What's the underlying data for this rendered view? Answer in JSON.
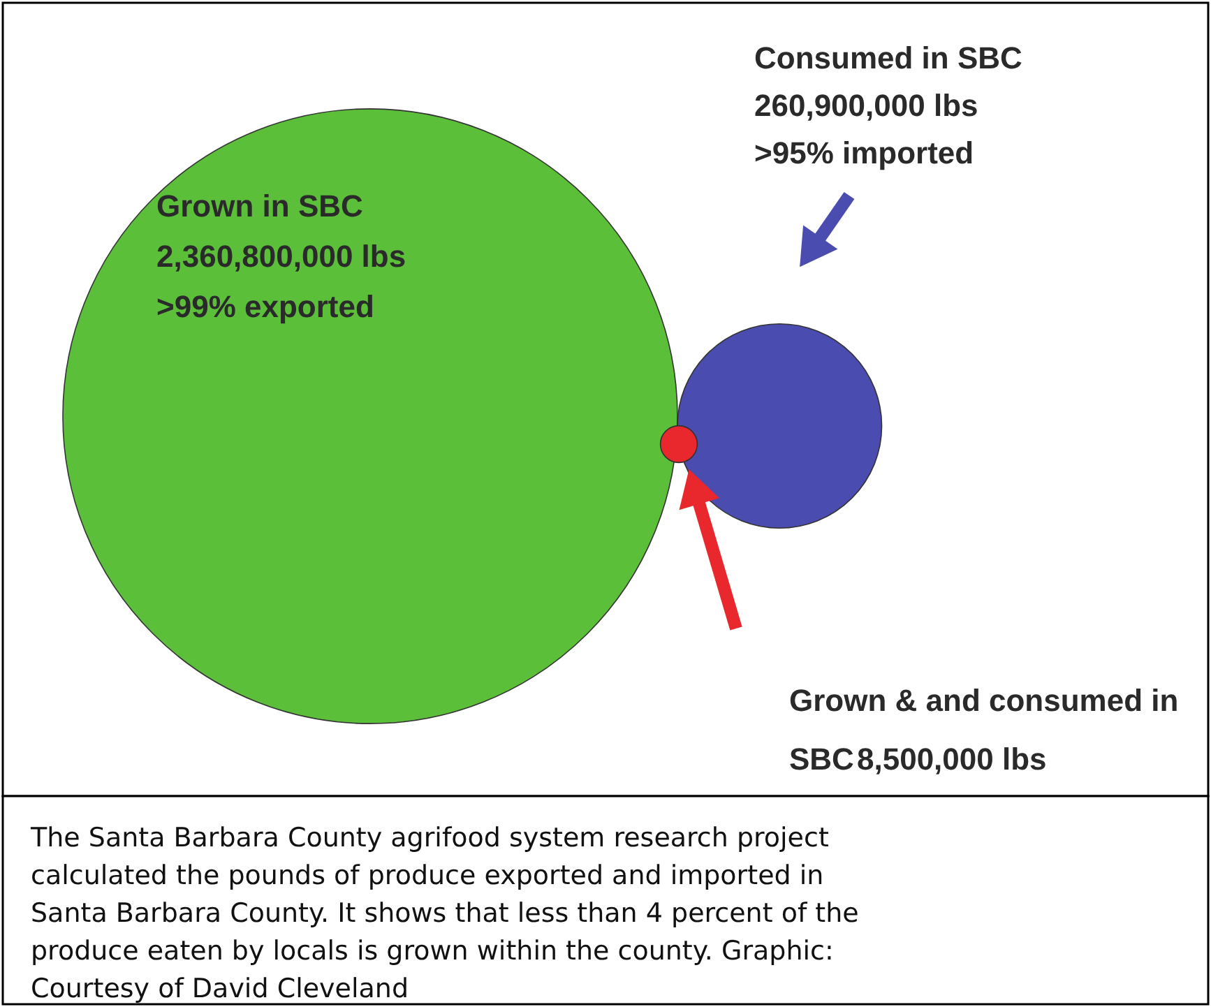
{
  "chart_data": {
    "type": "other",
    "categories": [
      "Grown in SBC",
      "Consumed in SBC",
      "Grown & and consumed in SBC"
    ],
    "values": [
      2360800000,
      260900000,
      8500000
    ],
    "value_labels": [
      "2,360,800,000 lbs",
      "260,900,000 lbs",
      "8,500,000 lbs"
    ],
    "colors": [
      "#5cbf3a",
      "#4a4cb0",
      "#e8282c"
    ],
    "annotations": [
      {
        "text": ">99% exported",
        "x": "Grown in SBC"
      },
      {
        "text": ">95% imported",
        "x": "Consumed in SBC"
      },
      "The Santa Barbara County agrifood system research project calculated the pounds of produce exported and imported in Santa Barbara County. It shows that less than 4 percent of the produce eaten by locals is grown within the county. Graphic: Courtesy of David Cleveland"
    ]
  }
}
